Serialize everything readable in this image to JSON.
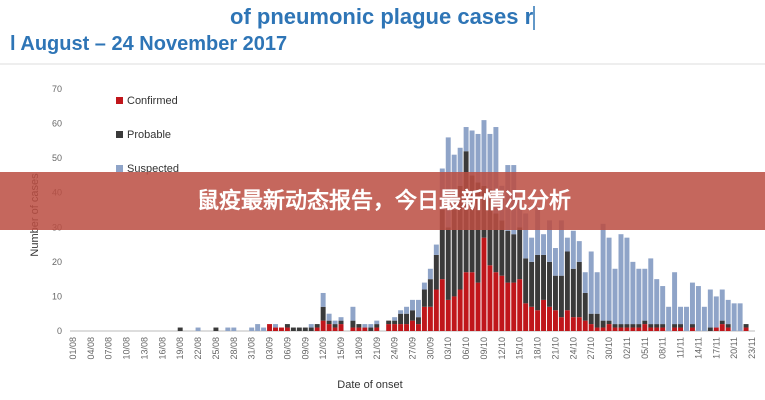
{
  "banner": "鼠疫最新动态报告，今日最新情况分析",
  "chart_data": {
    "type": "bar",
    "stacked": true,
    "title": "of pneumonic plague cases re",
    "subtitle": "l August – 24 November 2017",
    "y_label": "Number of cases",
    "x_label": "Date of onset",
    "ylim": [
      0,
      70
    ],
    "yticks": [
      0,
      10,
      20,
      30,
      40,
      50,
      60,
      70
    ],
    "grid": false,
    "legend": "top-left",
    "categories": [
      "01/08",
      null,
      null,
      "04/08",
      null,
      null,
      "07/08",
      null,
      null,
      "10/08",
      null,
      null,
      "13/08",
      null,
      null,
      "16/08",
      null,
      null,
      "19/08",
      null,
      null,
      "22/08",
      null,
      null,
      "25/08",
      null,
      null,
      "28/08",
      null,
      null,
      "31/08",
      null,
      null,
      "03/09",
      null,
      null,
      "06/09",
      null,
      null,
      "09/09",
      null,
      null,
      "12/09",
      null,
      null,
      "15/09",
      null,
      null,
      "18/09",
      null,
      null,
      "21/09",
      null,
      null,
      "24/09",
      null,
      null,
      "27/09",
      null,
      null,
      "30/09",
      null,
      null,
      "03/10",
      null,
      null,
      "06/10",
      null,
      null,
      "09/10",
      null,
      null,
      "12/10",
      null,
      null,
      "15/10",
      null,
      null,
      "18/10",
      null,
      null,
      "21/10",
      null,
      null,
      "24/10",
      null,
      null,
      "27/10",
      null,
      null,
      "30/10",
      null,
      null,
      "02/11",
      null,
      null,
      "05/11",
      null,
      null,
      "08/11",
      null,
      null,
      "11/11",
      null,
      null,
      "14/11",
      null,
      null,
      "17/11",
      null,
      null,
      "20/11",
      null,
      null,
      "23/11"
    ],
    "series": [
      {
        "name": "Confirmed",
        "color": "#c0161b",
        "values": [
          0,
          0,
          0,
          0,
          0,
          0,
          0,
          0,
          0,
          0,
          0,
          0,
          0,
          0,
          0,
          0,
          0,
          0,
          0,
          0,
          0,
          0,
          0,
          0,
          0,
          0,
          0,
          0,
          0,
          0,
          0,
          0,
          0,
          2,
          1,
          1,
          1,
          0,
          0,
          0,
          0,
          1,
          3,
          2,
          1,
          2,
          0,
          1,
          1,
          1,
          0,
          1,
          0,
          2,
          2,
          2,
          2,
          3,
          2,
          7,
          7,
          12,
          15,
          9,
          10,
          12,
          17,
          17,
          14,
          27,
          19,
          17,
          16,
          14,
          14,
          15,
          8,
          7,
          6,
          9,
          7,
          6,
          4,
          6,
          4,
          4,
          3,
          2,
          1,
          1,
          2,
          1,
          1,
          1,
          1,
          1,
          2,
          1,
          1,
          1,
          0,
          1,
          1,
          0,
          1,
          0,
          0,
          0,
          1,
          2,
          1,
          0,
          0,
          1,
          0
        ]
      },
      {
        "name": "Probable",
        "color": "#3a3a3a",
        "values": [
          0,
          0,
          0,
          0,
          0,
          0,
          0,
          0,
          0,
          0,
          0,
          0,
          0,
          0,
          0,
          0,
          0,
          0,
          1,
          0,
          0,
          0,
          0,
          0,
          1,
          0,
          0,
          0,
          0,
          0,
          0,
          0,
          0,
          0,
          0,
          0,
          1,
          1,
          1,
          1,
          1,
          1,
          4,
          1,
          1,
          1,
          0,
          2,
          1,
          0,
          1,
          1,
          0,
          1,
          1,
          3,
          3,
          3,
          2,
          5,
          8,
          10,
          20,
          21,
          25,
          30,
          35,
          28,
          29,
          15,
          22,
          17,
          16,
          15,
          14,
          15,
          13,
          13,
          16,
          13,
          13,
          10,
          12,
          17,
          14,
          16,
          8,
          3,
          4,
          2,
          1,
          1,
          1,
          1,
          1,
          1,
          1,
          1,
          1,
          1,
          0,
          1,
          1,
          0,
          1,
          0,
          0,
          1,
          0,
          1,
          1,
          0,
          0,
          1,
          0
        ]
      },
      {
        "name": "Suspected",
        "color": "#8fa4c8",
        "values": [
          0,
          0,
          0,
          0,
          0,
          0,
          0,
          0,
          0,
          0,
          0,
          0,
          0,
          0,
          0,
          0,
          0,
          0,
          0,
          0,
          0,
          1,
          0,
          0,
          0,
          0,
          1,
          1,
          0,
          0,
          1,
          2,
          1,
          0,
          1,
          0,
          0,
          0,
          0,
          0,
          1,
          0,
          4,
          2,
          1,
          1,
          0,
          4,
          0,
          1,
          1,
          1,
          0,
          0,
          1,
          1,
          2,
          3,
          5,
          2,
          3,
          3,
          12,
          26,
          16,
          11,
          7,
          13,
          14,
          19,
          16,
          25,
          10,
          19,
          20,
          8,
          13,
          7,
          14,
          6,
          12,
          8,
          16,
          4,
          11,
          6,
          6,
          18,
          12,
          28,
          24,
          16,
          26,
          25,
          18,
          16,
          15,
          19,
          13,
          11,
          7,
          15,
          5,
          7,
          12,
          13,
          7,
          11,
          9,
          9,
          7,
          8,
          8,
          0,
          0
        ]
      }
    ]
  }
}
